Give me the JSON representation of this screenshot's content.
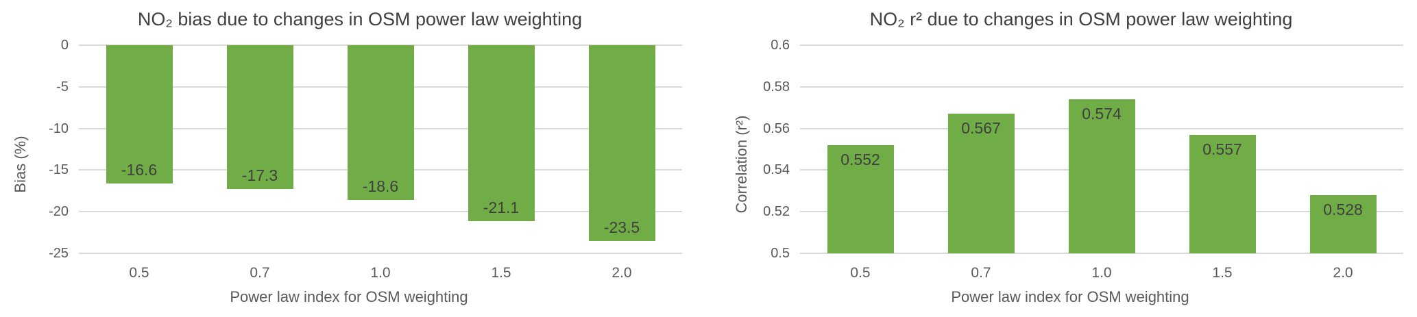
{
  "page": {
    "background": "#FFFFFF",
    "description": "Two side-by-side bar charts showing NO2 bias and NO2 r-squared versus OSM power law weighting index"
  },
  "colors": {
    "bar_fill": "#70AD47",
    "gridline": "#D9D9D9",
    "title_text": "#404040",
    "axis_text": "#595959",
    "data_label_text": "#3F3F3F"
  },
  "chart_data": [
    {
      "type": "bar",
      "title": "NO₂ bias due to changes in OSM power law weighting",
      "xlabel": "Power law index for OSM weighting",
      "ylabel": "Bias (%)",
      "categories": [
        "0.5",
        "0.7",
        "1.0",
        "1.5",
        "2.0"
      ],
      "values": [
        -16.6,
        -17.3,
        -18.6,
        -21.1,
        -23.5
      ],
      "data_labels": [
        "-16.6",
        "-17.3",
        "-18.6",
        "-21.1",
        "-23.5"
      ],
      "data_label_position": "inside-end",
      "ylim": [
        -25,
        0
      ],
      "yticks": [
        {
          "v": 0,
          "label": "0"
        },
        {
          "v": -5,
          "label": "-5"
        },
        {
          "v": -10,
          "label": "-10"
        },
        {
          "v": -15,
          "label": "-15"
        },
        {
          "v": -20,
          "label": "-20"
        },
        {
          "v": -25,
          "label": "-25"
        }
      ],
      "grid": "horizontal",
      "legend": "none",
      "bar_color": "#70AD47"
    },
    {
      "type": "bar",
      "title": "NO₂ r² due to changes in OSM power law weighting",
      "xlabel": "Power law index for OSM weighting",
      "ylabel": "Correlation (r²)",
      "categories": [
        "0.5",
        "0.7",
        "1.0",
        "1.5",
        "2.0"
      ],
      "values": [
        0.552,
        0.567,
        0.574,
        0.557,
        0.528
      ],
      "data_labels": [
        "0.552",
        "0.567",
        "0.574",
        "0.557",
        "0.528"
      ],
      "data_label_position": "inside-end",
      "ylim": [
        0.5,
        0.6
      ],
      "yticks": [
        {
          "v": 0.6,
          "label": "0.6"
        },
        {
          "v": 0.58,
          "label": "0.58"
        },
        {
          "v": 0.56,
          "label": "0.56"
        },
        {
          "v": 0.54,
          "label": "0.54"
        },
        {
          "v": 0.52,
          "label": "0.52"
        },
        {
          "v": 0.5,
          "label": "0.5"
        }
      ],
      "grid": "horizontal",
      "legend": "none",
      "bar_color": "#70AD47"
    }
  ]
}
